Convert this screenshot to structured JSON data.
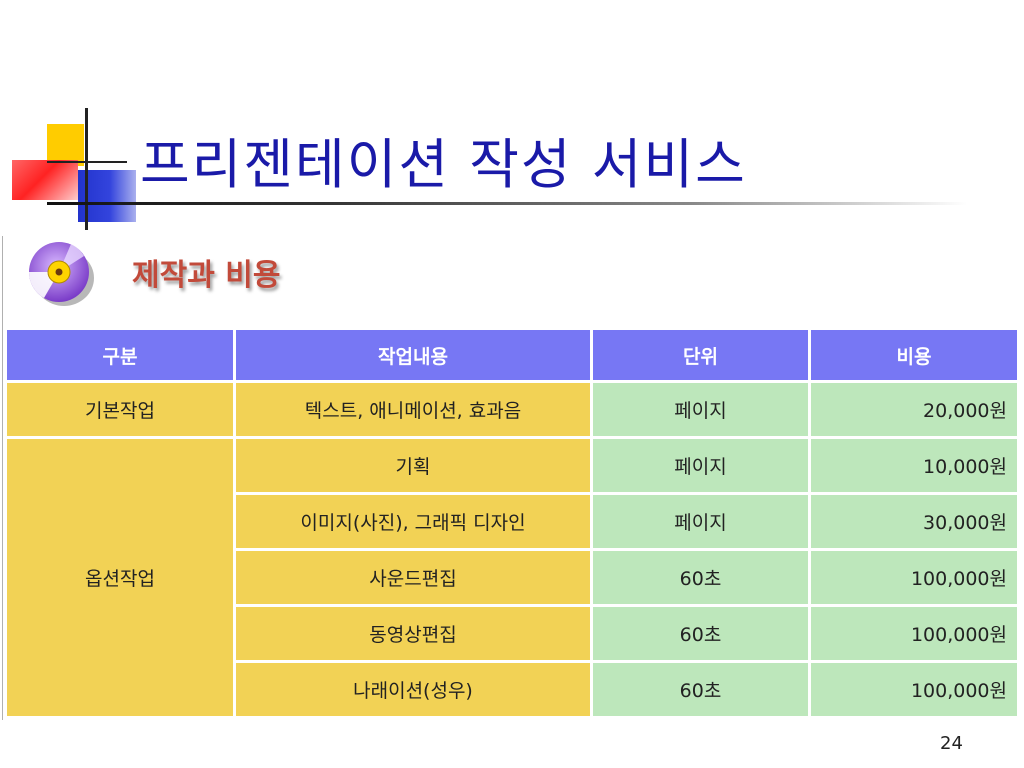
{
  "slide": {
    "title": "프리젠테이션 작성 서비스",
    "section_label": "제작과 비용",
    "page_number": "24"
  },
  "table": {
    "headers": [
      "구분",
      "작업내용",
      "단위",
      "비용"
    ],
    "basic": {
      "category": "기본작업",
      "rows": [
        {
          "task": "텍스트, 애니메이션, 효과음",
          "unit": "페이지",
          "cost": "20,000원"
        }
      ]
    },
    "option": {
      "category": "옵션작업",
      "rows": [
        {
          "task": "기획",
          "unit": "페이지",
          "cost": "10,000원"
        },
        {
          "task": "이미지(사진), 그래픽 디자인",
          "unit": "페이지",
          "cost": "30,000원"
        },
        {
          "task": "사운드편집",
          "unit": "60초",
          "cost": "100,000원"
        },
        {
          "task": "동영상편집",
          "unit": "60초",
          "cost": "100,000원"
        },
        {
          "task": "나래이션(성우)",
          "unit": "60초",
          "cost": "100,000원"
        }
      ]
    }
  },
  "colors": {
    "title": "#1a1aa8",
    "header_bg": "#7777f4",
    "category_bg": "#f2d255",
    "value_bg": "#bde7bb",
    "section_label": "#c24a3a"
  },
  "icons": {
    "slide_decoration": "color-blocks-decoration",
    "section": "cd-disc-icon"
  }
}
